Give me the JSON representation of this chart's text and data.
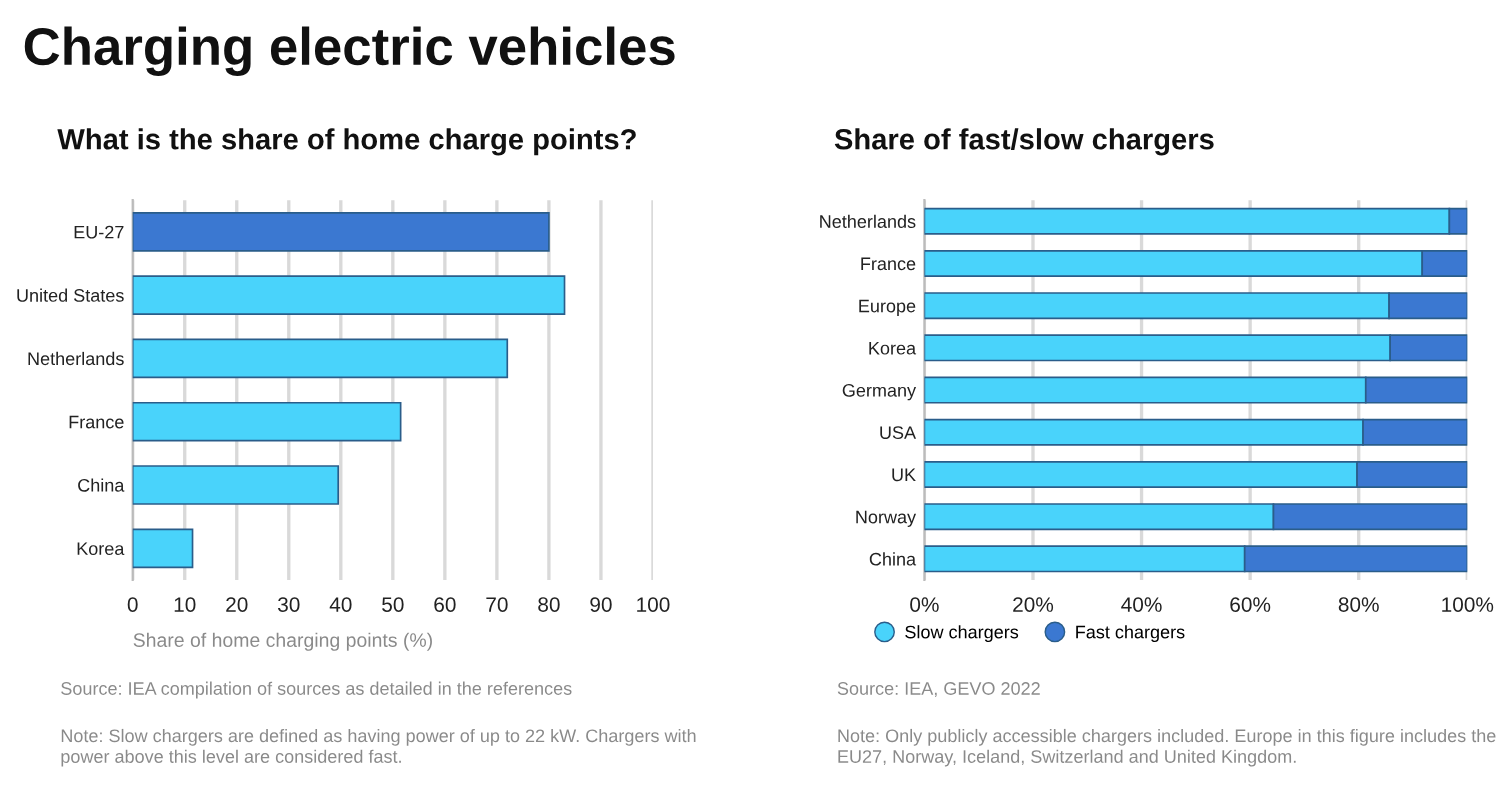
{
  "chart_data": [
    {
      "type": "bar",
      "orientation": "horizontal",
      "title": "Charging electric vehicles",
      "subtitle": "What is the share of home charge points?",
      "categories": [
        "EU-27",
        "United States",
        "Netherlands",
        "France",
        "China",
        "Korea"
      ],
      "values": [
        80,
        83,
        72,
        51.5,
        39.5,
        11.5
      ],
      "colors": [
        "#3b78d1",
        "#49d3fb",
        "#49d3fb",
        "#49d3fb",
        "#49d3fb",
        "#49d3fb"
      ],
      "xlabel": "Share of home charging points (%)",
      "xlim": [
        0,
        100
      ],
      "xticks": [
        0,
        10,
        20,
        30,
        40,
        50,
        60,
        70,
        80,
        90,
        100
      ],
      "grid": "x",
      "annotations": [
        "Source: IEA compilation of sources as detailed in the references",
        "Note: Slow chargers are defined as having power of up to 22 kW. Chargers with power above this level are considered fast."
      ]
    },
    {
      "type": "bar",
      "orientation": "horizontal",
      "stacked": true,
      "title": "Share of fast/slow chargers",
      "categories": [
        "Netherlands",
        "France",
        "Europe",
        "Korea",
        "Germany",
        "USA",
        "UK",
        "Norway",
        "China"
      ],
      "series": [
        {
          "name": "Slow chargers",
          "color": "#49d3fb",
          "values": [
            96.7,
            91.7,
            85.6,
            85.8,
            81.3,
            80.8,
            79.7,
            64.3,
            59.0
          ]
        },
        {
          "name": "Fast chargers",
          "color": "#3b78d1",
          "values": [
            3.3,
            8.3,
            14.4,
            14.2,
            18.7,
            19.2,
            20.3,
            35.7,
            41.0
          ]
        }
      ],
      "xlim": [
        0,
        100
      ],
      "xticks": [
        {
          "value": 0,
          "label": "0%"
        },
        {
          "value": 20,
          "label": "20%"
        },
        {
          "value": 40,
          "label": "40%"
        },
        {
          "value": 60,
          "label": "60%"
        },
        {
          "value": 80,
          "label": "80%"
        },
        {
          "value": 100,
          "label": "100%"
        }
      ],
      "grid": "x",
      "legend": "bottom",
      "marker": "circle",
      "annotations": [
        "Source: IEA, GEVO 2022",
        "Note: Only publicly accessible chargers included. Europe in this figure includes the EU27, Norway, Iceland, Switzerland and United Kingdom."
      ]
    }
  ]
}
